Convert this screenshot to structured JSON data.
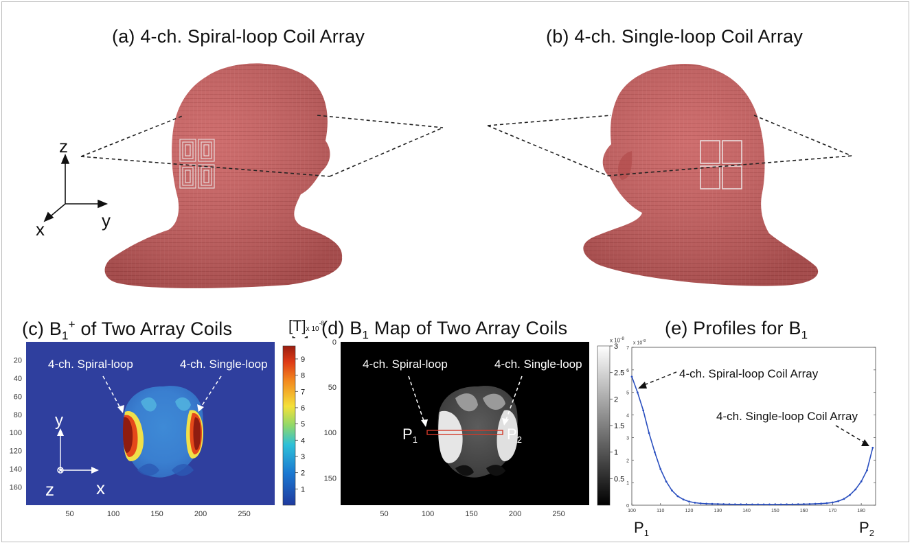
{
  "panels": {
    "a": {
      "label": "(a) ",
      "title_rest": "4-ch.  Spiral-loop Coil Array"
    },
    "b": {
      "label": "(b) ",
      "title_rest": "4-ch.  Single-loop Coil Array"
    },
    "c": {
      "label": "(c) B",
      "sub": "1",
      "sup": "+",
      "title_rest": " of Two Array Coils"
    },
    "d": {
      "label": "(d) B",
      "sub": "1",
      "title_rest": "  Map of Two Array Coils"
    },
    "e": {
      "label": "(e)  Profiles for B",
      "sub": "1"
    }
  },
  "axes3d": {
    "z": "z",
    "x": "x",
    "y": "y"
  },
  "panel_c": {
    "unit": "[T]",
    "exponent": "x 10",
    "exponent_power": "-8",
    "spiral_label": "4-ch. Spiral-loop",
    "single_label": "4-ch. Single-loop",
    "yticks": [
      "20",
      "40",
      "60",
      "80",
      "100",
      "120",
      "140",
      "160"
    ],
    "xticks": [
      "50",
      "100",
      "150",
      "200",
      "250"
    ],
    "colorbar_ticks": [
      "1",
      "2",
      "3",
      "4",
      "5",
      "6",
      "7",
      "8",
      "9"
    ],
    "axis_y": "y",
    "axis_z": "z",
    "axis_x": "x"
  },
  "panel_d": {
    "spiral_label": "4-ch. Spiral-loop",
    "single_label": "4-ch. Single-loop",
    "p1": "P",
    "p1_sub": "1",
    "p2": "P",
    "p2_sub": "2",
    "yticks": [
      "0",
      "50",
      "100",
      "150"
    ],
    "xticks": [
      "50",
      "100",
      "150",
      "200",
      "250"
    ],
    "colorbar_exponent": "x 10",
    "colorbar_exponent_power": "-8",
    "colorbar_ticks": [
      "0.5",
      "1",
      "1.5",
      "2",
      "2.5",
      "3"
    ]
  },
  "chart_data": {
    "type": "line",
    "title": "(e)  Profiles for B1",
    "x": [
      100,
      102,
      104,
      106,
      108,
      110,
      112,
      114,
      116,
      118,
      120,
      122,
      124,
      126,
      128,
      130,
      132,
      134,
      136,
      138,
      140,
      142,
      144,
      146,
      148,
      150,
      152,
      154,
      156,
      158,
      160,
      162,
      164,
      166,
      168,
      170,
      172,
      174,
      176,
      178,
      180,
      182,
      184
    ],
    "series": [
      {
        "values": [
          5.7,
          5.0,
          4.2,
          3.2,
          2.35,
          1.6,
          1.05,
          0.65,
          0.4,
          0.25,
          0.16,
          0.11,
          0.08,
          0.065,
          0.055,
          0.05,
          0.045,
          0.04,
          0.038,
          0.036,
          0.035,
          0.034,
          0.033,
          0.033,
          0.033,
          0.034,
          0.035,
          0.036,
          0.038,
          0.04,
          0.045,
          0.05,
          0.06,
          0.07,
          0.09,
          0.12,
          0.18,
          0.28,
          0.45,
          0.7,
          1.05,
          1.55,
          2.55
        ]
      }
    ],
    "xlim": [
      100,
      185
    ],
    "ylim": [
      0,
      7
    ],
    "xticks": [
      "100",
      "110",
      "120",
      "130",
      "140",
      "150",
      "160",
      "170",
      "180"
    ],
    "yticks": [
      "0",
      "1",
      "2",
      "3",
      "4",
      "5",
      "6",
      "7"
    ],
    "y_exponent": "x 10",
    "y_exponent_power": "-8",
    "grid": false,
    "annotations": [
      "4-ch. Spiral-loop Coil Array",
      "4-ch. Single-loop Coil Array"
    ],
    "p1": "P",
    "p1_sub": "1",
    "p2": "P",
    "p2_sub": "2",
    "line_color": "#2a4fbf"
  },
  "colors": {
    "head": "#c55a5a",
    "head_dark": "#a84444",
    "field_bg": "#2f3f9e",
    "line": "#2a4fbf"
  }
}
